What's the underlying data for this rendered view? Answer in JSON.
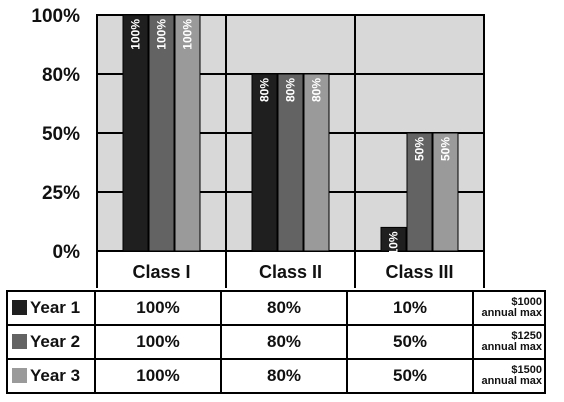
{
  "chart_data": {
    "type": "bar",
    "categories": [
      "Class I",
      "Class II",
      "Class III"
    ],
    "series": [
      {
        "name": "Year 1",
        "color": "#1f1f1f",
        "values": [
          100,
          80,
          10
        ],
        "labels": [
          "100%",
          "80%",
          "10%"
        ]
      },
      {
        "name": "Year 2",
        "color": "#636363",
        "values": [
          100,
          80,
          50
        ],
        "labels": [
          "100%",
          "80%",
          "50%"
        ]
      },
      {
        "name": "Year 3",
        "color": "#9a9a9a",
        "values": [
          100,
          80,
          50
        ],
        "labels": [
          "100%",
          "80%",
          "50%"
        ]
      }
    ],
    "ytick_labels": [
      "100%",
      "80%",
      "50%",
      "25%",
      "0%"
    ],
    "ytick_values": [
      100,
      80,
      50,
      25,
      0
    ],
    "ylim": [
      0,
      100
    ],
    "grid": true,
    "plot_background": "#d8d8d8",
    "notes": [
      [
        "$1000",
        "annual max"
      ],
      [
        "$1250",
        "annual max"
      ],
      [
        "$1500",
        "annual max"
      ]
    ]
  }
}
